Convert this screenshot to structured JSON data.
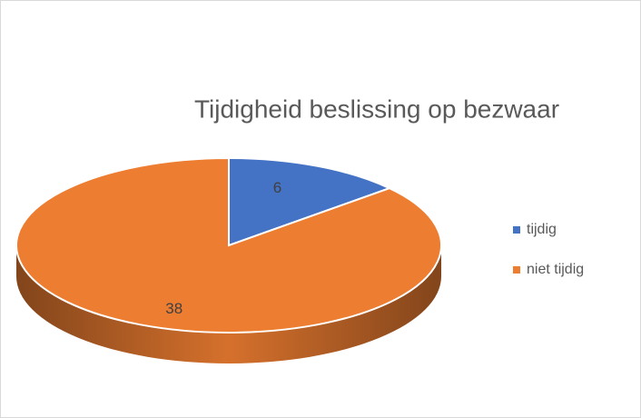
{
  "chart_data": {
    "type": "pie",
    "title": "Tijdigheid beslissing op bezwaar",
    "categories": [
      "tijdig",
      "niet tijdig"
    ],
    "values": [
      6,
      38
    ],
    "colors": [
      "#4472c4",
      "#ed7d31"
    ],
    "legend": "right"
  }
}
